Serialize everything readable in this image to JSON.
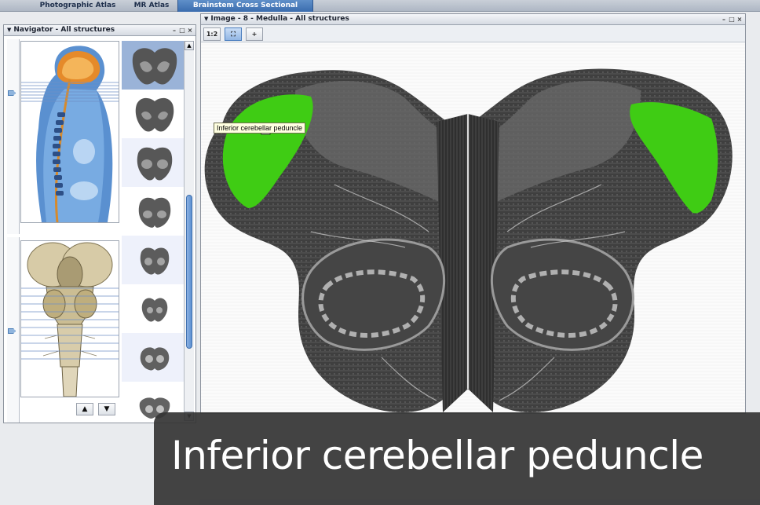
{
  "tabs": [
    {
      "label": "Photographic Atlas",
      "active": false
    },
    {
      "label": "MR Atlas",
      "active": false
    },
    {
      "label": "Brainstem Cross Sectional Atlas",
      "active": true
    }
  ],
  "navigator": {
    "title": "Navigator - All structures",
    "thumbnail_count": 8,
    "selected_thumbnail": 1
  },
  "image_window": {
    "title": "Image - 8 - Medulla - All structures",
    "tool_1": "1:2",
    "highlight_color": "#3fcc14"
  },
  "tooltip": {
    "text": "Inferior cerebellar peduncle"
  },
  "caption": {
    "text": "Inferior cerebellar peduncle"
  },
  "icons": [
    "collapse-triangle-icon",
    "minimize-icon",
    "restore-icon",
    "close-icon",
    "zoom-icon",
    "fit-icon",
    "crosshair-icon",
    "hand-cursor-icon",
    "arrow-up-icon",
    "arrow-down-icon"
  ]
}
